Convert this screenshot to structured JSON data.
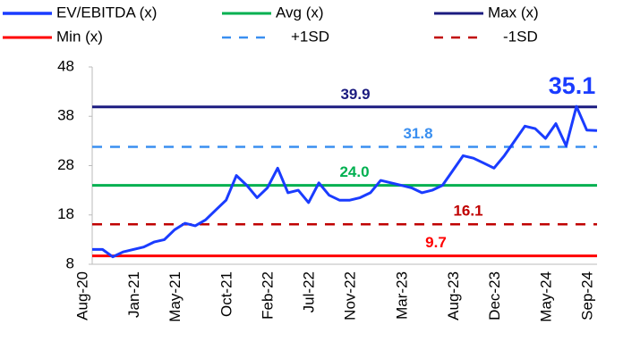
{
  "chart_data": {
    "type": "line",
    "categories": [
      "Aug-20",
      null,
      null,
      null,
      null,
      "Jan-21",
      null,
      null,
      null,
      "May-21",
      null,
      null,
      null,
      null,
      "Oct-21",
      null,
      null,
      null,
      "Feb-22",
      null,
      null,
      null,
      "Jul-22",
      null,
      null,
      null,
      "Nov-22",
      null,
      null,
      null,
      null,
      "Mar-23",
      null,
      null,
      null,
      null,
      "Aug-23",
      null,
      null,
      null,
      "Dec-23",
      null,
      null,
      null,
      null,
      "May-24",
      null,
      null,
      null,
      "Sep-24"
    ],
    "series": [
      {
        "name": "EV/EBITDA (x)",
        "color": "#1a3cff",
        "values": [
          11,
          11,
          9.5,
          10.5,
          11,
          11.5,
          12.5,
          13,
          15,
          16.3,
          15.8,
          17,
          19,
          21,
          26,
          24,
          21.5,
          23.5,
          27.5,
          22.5,
          23,
          20.5,
          24.5,
          22,
          21,
          21,
          21.5,
          22.5,
          25,
          24.5,
          24,
          23.5,
          22.5,
          23,
          24,
          27,
          30,
          29.5,
          28.5,
          27.5,
          30,
          33,
          36,
          35.5,
          33.5,
          36.5,
          32,
          40,
          35.2,
          35.1
        ]
      },
      {
        "name": "Avg (x)",
        "color": "#00b050",
        "value": 24.0,
        "value_label": "24.0",
        "dashed": false
      },
      {
        "name": "Max (x)",
        "color": "#1c1c80",
        "value": 39.9,
        "dashed": false
      },
      {
        "name": "Min (x)",
        "color": "#ff0000",
        "value": 9.7,
        "dashed": false
      },
      {
        "name": "+1SD",
        "color": "#3a8ff0",
        "value": 31.8,
        "dashed": true
      },
      {
        "name": "-1SD",
        "color": "#c00000",
        "value": 16.1,
        "dashed": true
      }
    ],
    "ylim": [
      8,
      48
    ],
    "yticks": [
      8,
      18,
      28,
      38,
      48
    ]
  }
}
